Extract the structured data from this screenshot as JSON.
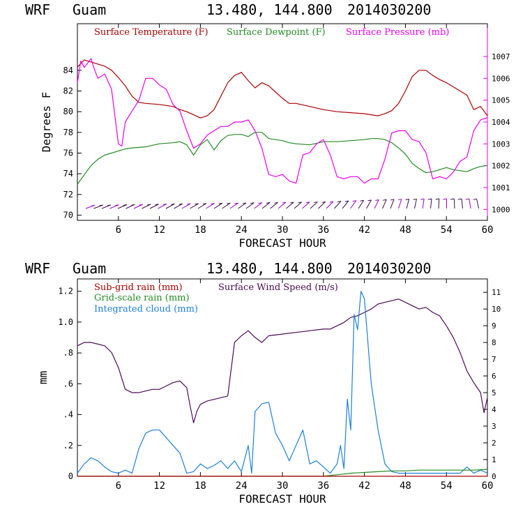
{
  "chart_data": [
    {
      "type": "line",
      "header": {
        "model": "WRF",
        "location": "Guam",
        "coords": "13.480, 144.800",
        "init": "2014030200"
      },
      "title": "",
      "xlabel": "FORECAST HOUR",
      "ylabel": "Degrees F",
      "xlim": [
        0,
        60
      ],
      "ylim": [
        69.5,
        88.5
      ],
      "y2lim": [
        999.5,
        1008.5
      ],
      "xticks": [
        6,
        12,
        18,
        24,
        30,
        36,
        42,
        48,
        54,
        60
      ],
      "yticks": [
        70,
        72,
        74,
        76,
        78,
        80,
        82,
        84
      ],
      "y2ticks": [
        1000,
        1001,
        1002,
        1003,
        1004,
        1005,
        1006,
        1007
      ],
      "legend": [
        "Surface Temperature (F)",
        "Surface Dewpoint (F)",
        "Surface Pressure (mb)"
      ],
      "series": [
        {
          "name": "Surface Temperature (F)",
          "axis": "left",
          "color": "#aa0000",
          "x": [
            0,
            1,
            2,
            3,
            4,
            5,
            6,
            7,
            8,
            9,
            10,
            12,
            14,
            15,
            16,
            17,
            18,
            19,
            20,
            21,
            22,
            23,
            24,
            25,
            26,
            27,
            28,
            29,
            30,
            31,
            32,
            34,
            36,
            38,
            40,
            42,
            44,
            45,
            46,
            47,
            48,
            49,
            50,
            51,
            52,
            53,
            54,
            55,
            56,
            57,
            58,
            59,
            60
          ],
          "values": [
            84.3,
            85.0,
            84.8,
            84.6,
            84.4,
            84.0,
            83.3,
            82.5,
            81.5,
            80.9,
            80.8,
            80.7,
            80.5,
            80.2,
            80.0,
            79.7,
            79.4,
            79.6,
            80.2,
            81.5,
            82.8,
            83.5,
            83.8,
            83.0,
            82.3,
            82.8,
            82.5,
            81.9,
            81.3,
            80.8,
            80.8,
            80.5,
            80.2,
            80.0,
            79.9,
            79.8,
            79.6,
            79.8,
            80.1,
            80.8,
            82.0,
            83.4,
            84.0,
            84.0,
            83.5,
            83.1,
            82.8,
            82.4,
            82.0,
            81.6,
            80.2,
            80.5,
            79.6
          ]
        },
        {
          "name": "Surface Dewpoint (F)",
          "axis": "left",
          "color": "#228b22",
          "x": [
            0,
            1,
            2,
            3,
            4,
            5,
            6,
            7,
            8,
            10,
            12,
            14,
            15,
            16,
            17,
            18,
            19,
            20,
            21,
            22,
            23,
            24,
            25,
            26,
            27,
            28,
            29,
            30,
            31,
            32,
            34,
            36,
            38,
            40,
            42,
            43,
            44,
            45,
            46,
            47,
            48,
            49,
            50,
            51,
            52,
            54,
            55,
            56,
            57,
            58,
            59,
            60
          ],
          "values": [
            73.0,
            73.9,
            74.8,
            75.4,
            75.8,
            76.0,
            76.2,
            76.4,
            76.5,
            76.6,
            76.9,
            77.0,
            77.1,
            76.8,
            75.8,
            76.8,
            77.3,
            76.3,
            77.2,
            77.7,
            77.8,
            77.8,
            77.6,
            78.0,
            78.0,
            77.4,
            77.3,
            77.2,
            77.0,
            76.9,
            76.8,
            77.1,
            77.1,
            77.2,
            77.3,
            77.4,
            77.4,
            77.3,
            77.0,
            76.5,
            75.9,
            75.0,
            74.5,
            74.1,
            74.2,
            74.6,
            74.4,
            74.3,
            74.2,
            74.5,
            74.7,
            74.8
          ]
        },
        {
          "name": "Surface Pressure (mb)",
          "axis": "right",
          "color": "#ee00ee",
          "x": [
            0,
            0.5,
            1,
            2,
            2.5,
            3,
            4,
            5,
            6,
            6.5,
            7,
            8,
            9,
            10,
            11,
            12,
            13,
            14,
            15,
            16,
            17,
            18,
            19,
            20,
            21,
            22,
            23,
            24,
            25,
            26,
            27,
            28,
            29,
            30,
            31,
            32,
            33,
            34,
            35,
            36,
            37,
            38,
            39,
            40,
            41,
            42,
            43,
            44,
            45,
            46,
            47,
            48,
            49,
            50,
            51,
            52,
            53,
            54,
            55,
            56,
            57,
            58,
            59,
            60
          ],
          "values": [
            1005.8,
            1006.8,
            1006.5,
            1006.9,
            1006.4,
            1006.0,
            1006.2,
            1005.5,
            1003.0,
            1002.9,
            1004.0,
            1004.5,
            1005.0,
            1006.0,
            1006.0,
            1005.7,
            1005.5,
            1004.8,
            1004.5,
            1003.6,
            1002.8,
            1003.0,
            1003.4,
            1003.6,
            1003.8,
            1003.8,
            1004.0,
            1004.0,
            1004.1,
            1003.6,
            1002.8,
            1001.6,
            1001.5,
            1001.6,
            1001.3,
            1001.2,
            1002.5,
            1002.6,
            1003.0,
            1003.2,
            1002.5,
            1001.5,
            1001.4,
            1001.5,
            1001.5,
            1001.2,
            1001.4,
            1001.4,
            1002.3,
            1003.5,
            1003.6,
            1003.6,
            1003.2,
            1003.1,
            1002.6,
            1001.4,
            1001.5,
            1001.4,
            1001.7,
            1002.2,
            1002.4,
            1003.6,
            1004.1,
            1004.2
          ]
        }
      ],
      "wind_barbs_note": "wind barbs along bottom at 70-71 F"
    },
    {
      "type": "line",
      "header": {
        "model": "WRF",
        "location": "Guam",
        "coords": "13.480, 144.800",
        "init": "2014030200"
      },
      "title": "",
      "xlabel": "FORECAST HOUR",
      "ylabel": "mm",
      "xlim": [
        0,
        60
      ],
      "ylim": [
        0,
        1.28
      ],
      "y2lim": [
        0,
        11.8
      ],
      "xticks": [
        6,
        12,
        18,
        24,
        30,
        36,
        42,
        48,
        54,
        60
      ],
      "yticks": [
        0,
        0.2,
        0.4,
        0.6,
        0.8,
        1.0,
        1.2
      ],
      "ytick_labels": [
        "0",
        ".2",
        ".4",
        ".6",
        ".8",
        "1.0",
        "1.2"
      ],
      "y2ticks": [
        0,
        1,
        2,
        3,
        4,
        5,
        6,
        7,
        8,
        9,
        10,
        11
      ],
      "legend": [
        "Sub-grid rain (mm)",
        "Surface Wind Speed (m/s)",
        "Grid-scale rain (mm)",
        "Integrated cloud (mm)"
      ],
      "series": [
        {
          "name": "Surface Wind Speed (m/s)",
          "axis": "right",
          "color": "#4b0a55",
          "x": [
            0,
            1,
            2,
            3,
            4,
            5,
            6,
            7,
            8,
            9,
            10,
            11,
            12,
            13,
            14,
            15,
            16,
            16.5,
            17,
            17.5,
            18,
            19,
            20,
            21,
            22,
            23,
            24,
            25,
            26,
            27,
            28,
            30,
            32,
            34,
            36,
            37,
            38,
            39,
            40,
            41,
            42,
            43,
            44,
            45,
            46,
            47,
            48,
            49,
            50,
            51,
            52,
            53,
            54,
            55,
            56,
            57,
            58,
            59,
            59.5,
            60
          ],
          "values": [
            7.8,
            8.0,
            8.0,
            7.9,
            7.8,
            7.4,
            6.5,
            5.2,
            5.0,
            5.0,
            5.1,
            5.2,
            5.2,
            5.4,
            5.6,
            5.7,
            5.3,
            4.2,
            3.2,
            3.9,
            4.3,
            4.5,
            4.6,
            4.7,
            4.8,
            8.0,
            8.4,
            8.7,
            8.3,
            8.0,
            8.4,
            8.5,
            8.6,
            8.7,
            8.8,
            8.8,
            9.0,
            9.2,
            9.5,
            9.6,
            9.8,
            10.0,
            10.3,
            10.4,
            10.5,
            10.6,
            10.4,
            10.2,
            10.0,
            10.1,
            9.8,
            9.6,
            9.0,
            8.3,
            7.4,
            6.3,
            5.6,
            5.0,
            3.8,
            4.7
          ]
        },
        {
          "name": "Integrated cloud (mm)",
          "axis": "left",
          "color": "#1e7fd8",
          "x": [
            0,
            1,
            2,
            3,
            4,
            5,
            6,
            7,
            8,
            9,
            10,
            11,
            12,
            13,
            14,
            15,
            16,
            17,
            18,
            19,
            20,
            21,
            22,
            23,
            24,
            25,
            25.5,
            26,
            27,
            28,
            29,
            30,
            31,
            32,
            33,
            34,
            35,
            36,
            37,
            38,
            38.5,
            39,
            39.5,
            40,
            40.5,
            41,
            41.5,
            42,
            43,
            44,
            45,
            46,
            47,
            48,
            50,
            52,
            54,
            56,
            57,
            58,
            59,
            60
          ],
          "values": [
            0.02,
            0.08,
            0.12,
            0.1,
            0.06,
            0.03,
            0.02,
            0.04,
            0.02,
            0.18,
            0.28,
            0.3,
            0.3,
            0.25,
            0.2,
            0.15,
            0.02,
            0.03,
            0.08,
            0.05,
            0.07,
            0.1,
            0.05,
            0.1,
            0.03,
            0.2,
            0.02,
            0.42,
            0.47,
            0.48,
            0.28,
            0.2,
            0.1,
            0.2,
            0.3,
            0.08,
            0.1,
            0.06,
            0.02,
            0.08,
            0.2,
            0.05,
            0.5,
            0.3,
            1.05,
            0.95,
            1.2,
            1.15,
            0.6,
            0.3,
            0.08,
            0.03,
            0.02,
            0.02,
            0.02,
            0.02,
            0.02,
            0.02,
            0.06,
            0.02,
            0.04,
            0.02
          ]
        },
        {
          "name": "Grid-scale rain (mm)",
          "axis": "left",
          "color": "#228b22",
          "x": [
            0,
            36,
            37,
            38,
            40,
            42,
            44,
            46,
            48,
            50,
            52,
            54,
            56,
            58,
            60
          ],
          "values": [
            0,
            0,
            0.005,
            0.01,
            0.02,
            0.025,
            0.03,
            0.035,
            0.035,
            0.04,
            0.04,
            0.04,
            0.04,
            0.04,
            0.045
          ]
        },
        {
          "name": "Sub-grid rain (mm)",
          "axis": "left",
          "color": "#aa0000",
          "x": [
            0,
            60
          ],
          "values": [
            0,
            0
          ]
        }
      ]
    }
  ]
}
